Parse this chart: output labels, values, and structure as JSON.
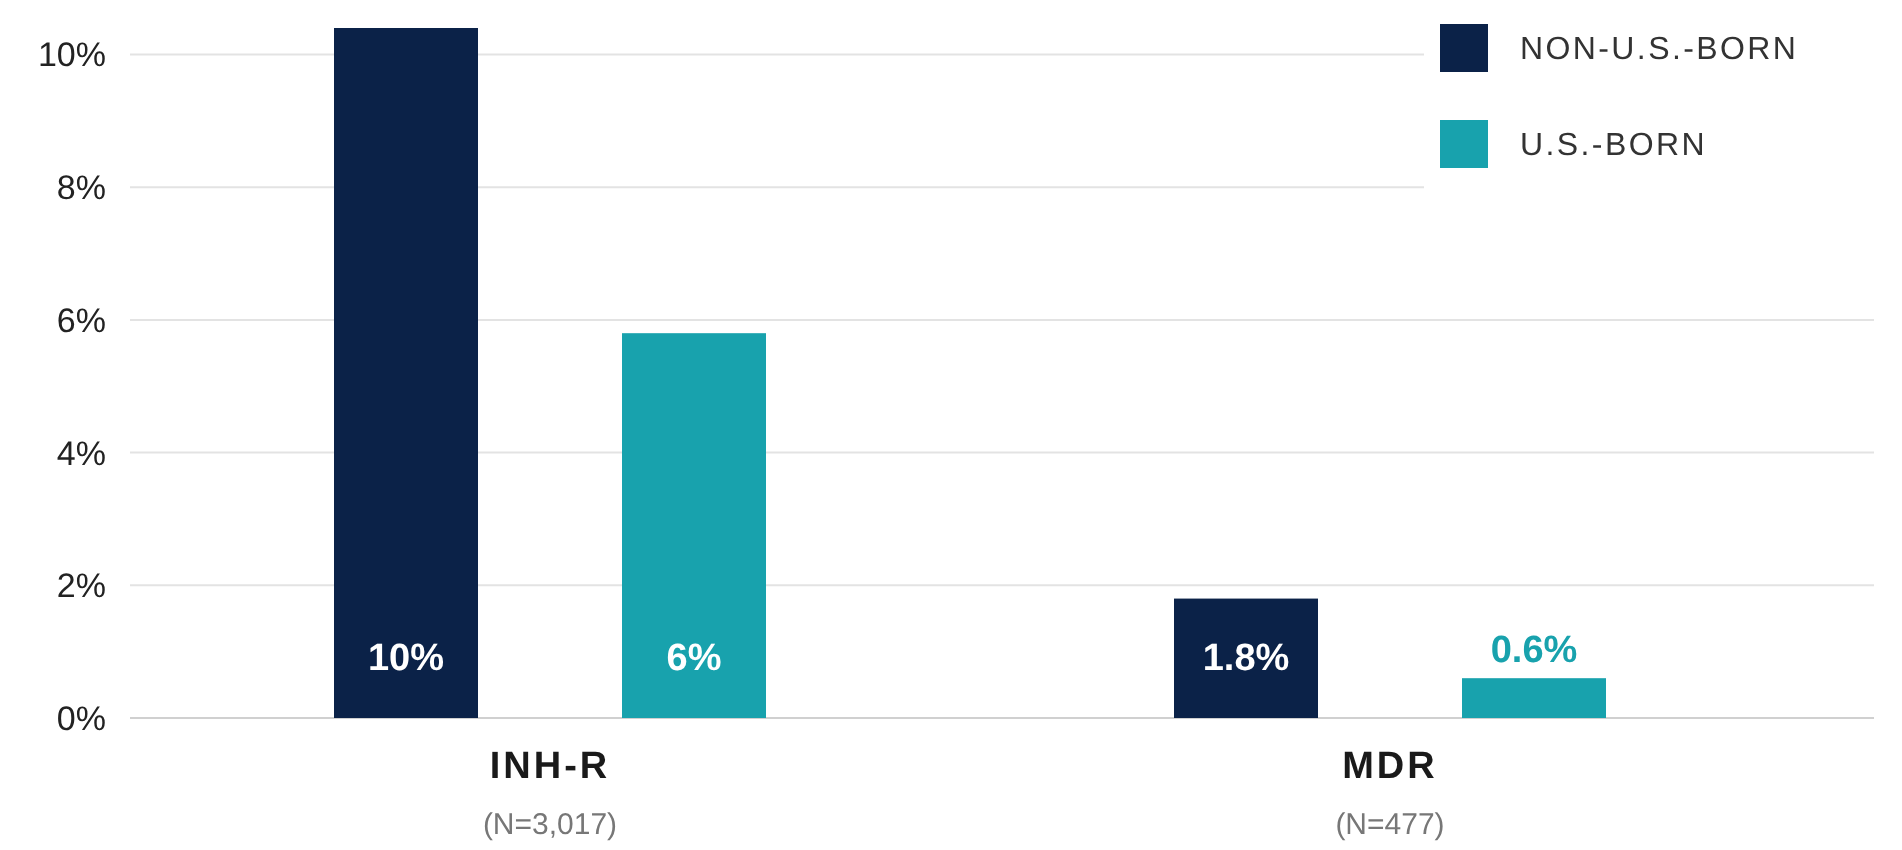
{
  "chart_data": {
    "type": "bar",
    "categories": [
      "INH-R\n(N=3,017)",
      "MDR\n(N=477)"
    ],
    "series": [
      {
        "name": "NON-U.S.-BORN",
        "color": "#0b2248",
        "values": [
          10.4,
          1.8
        ],
        "value_labels": [
          "10%",
          "1.8%"
        ]
      },
      {
        "name": "U.S.-BORN",
        "color": "#18a2ad",
        "values": [
          5.8,
          0.6
        ],
        "value_labels": [
          "6%",
          "0.6%"
        ]
      }
    ],
    "ylim": [
      0,
      10.4
    ],
    "yticks": [
      {
        "value": 0,
        "label": "0%"
      },
      {
        "value": 2,
        "label": "2%"
      },
      {
        "value": 4,
        "label": "4%"
      },
      {
        "value": 6,
        "label": "6%"
      },
      {
        "value": 8,
        "label": "8%"
      },
      {
        "value": 10,
        "label": "10%"
      }
    ],
    "grid": "y",
    "legend": "top right"
  }
}
